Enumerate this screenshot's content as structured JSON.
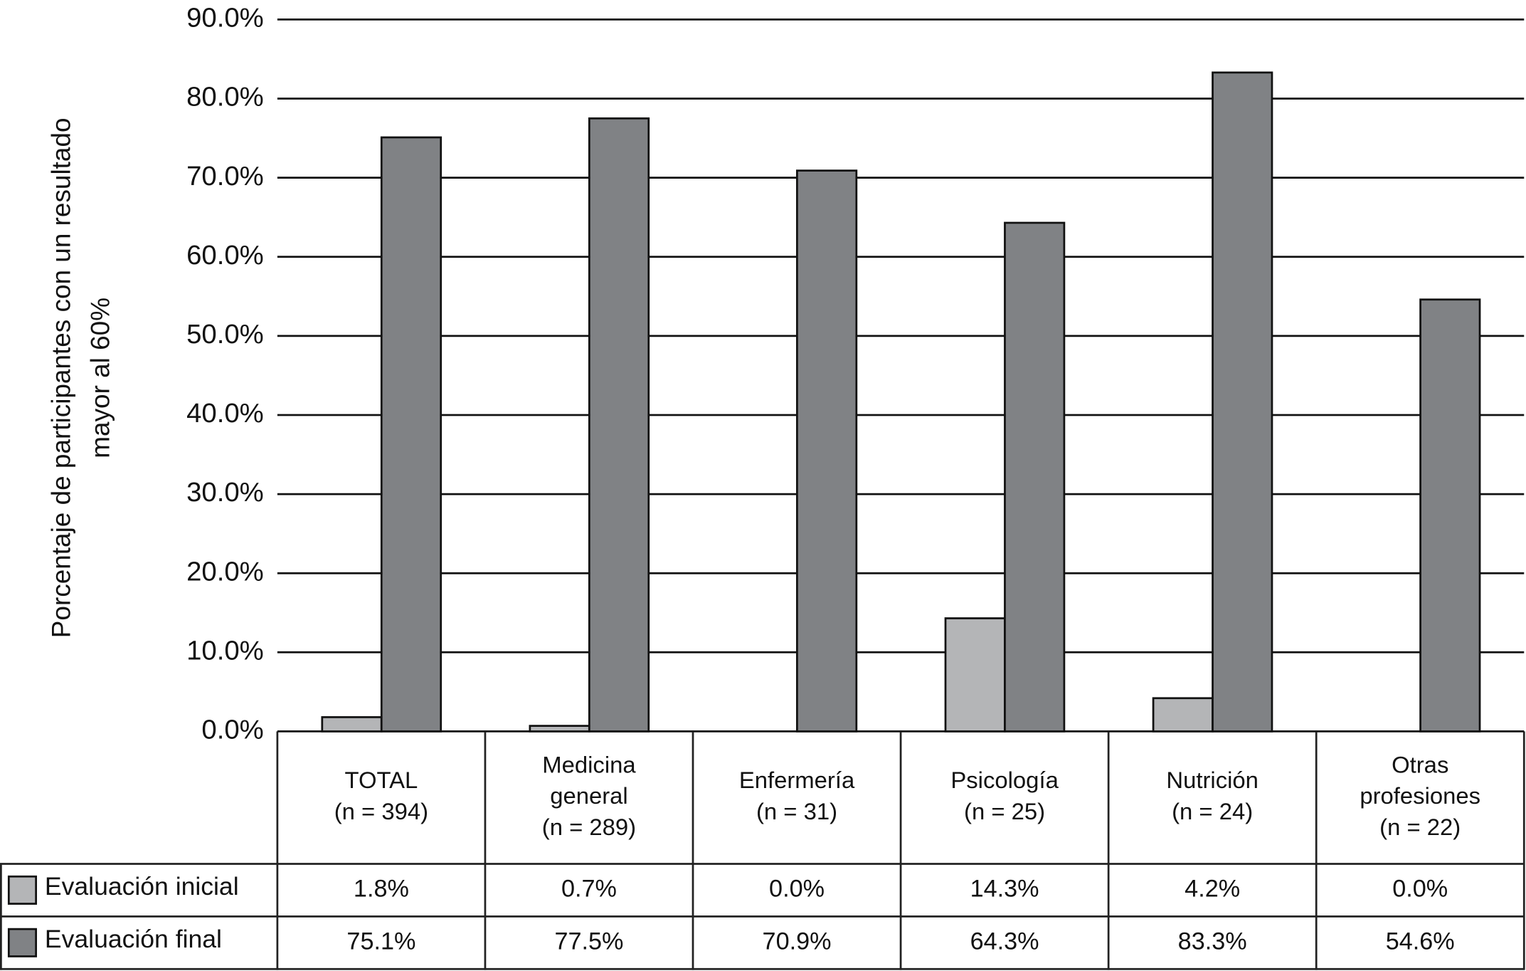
{
  "chart_data": {
    "type": "bar",
    "y_label": [
      "Porcentaje de participantes con un resultado",
      "mayor al 60%"
    ],
    "categories": [
      [
        "TOTAL",
        "(n = 394)"
      ],
      [
        "Medicina",
        "general",
        "(n = 289)"
      ],
      [
        "Enfermería",
        "(n = 31)"
      ],
      [
        "Psicología",
        "(n = 25)"
      ],
      [
        "Nutrición",
        "(n = 24)"
      ],
      [
        "Otras",
        "profesiones",
        "(n = 22)"
      ]
    ],
    "series": [
      {
        "name": "Evaluación inicial",
        "color": "#b4b5b7",
        "values": [
          1.8,
          0.7,
          0.0,
          14.3,
          4.2,
          0.0
        ],
        "value_labels": [
          "1.8%",
          "0.7%",
          "0.0%",
          "14.3%",
          "4.2%",
          "0.0%"
        ]
      },
      {
        "name": "Evaluación final",
        "color": "#808285",
        "values": [
          75.1,
          77.5,
          70.9,
          64.3,
          83.3,
          54.6
        ],
        "value_labels": [
          "75.1%",
          "77.5%",
          "70.9%",
          "64.3%",
          "83.3%",
          "54.6%"
        ]
      }
    ],
    "ylim": [
      0,
      90
    ],
    "yticks": [
      {
        "value": 0,
        "label": "0.0%"
      },
      {
        "value": 10,
        "label": "10.0%"
      },
      {
        "value": 20,
        "label": "20.0%"
      },
      {
        "value": 30,
        "label": "30.0%"
      },
      {
        "value": 40,
        "label": "40.0%"
      },
      {
        "value": 50,
        "label": "50.0%"
      },
      {
        "value": 60,
        "label": "60.0%"
      },
      {
        "value": 70,
        "label": "70.0%"
      },
      {
        "value": 80,
        "label": "80.0%"
      },
      {
        "value": 90,
        "label": "90.0%"
      }
    ],
    "grid": true
  }
}
